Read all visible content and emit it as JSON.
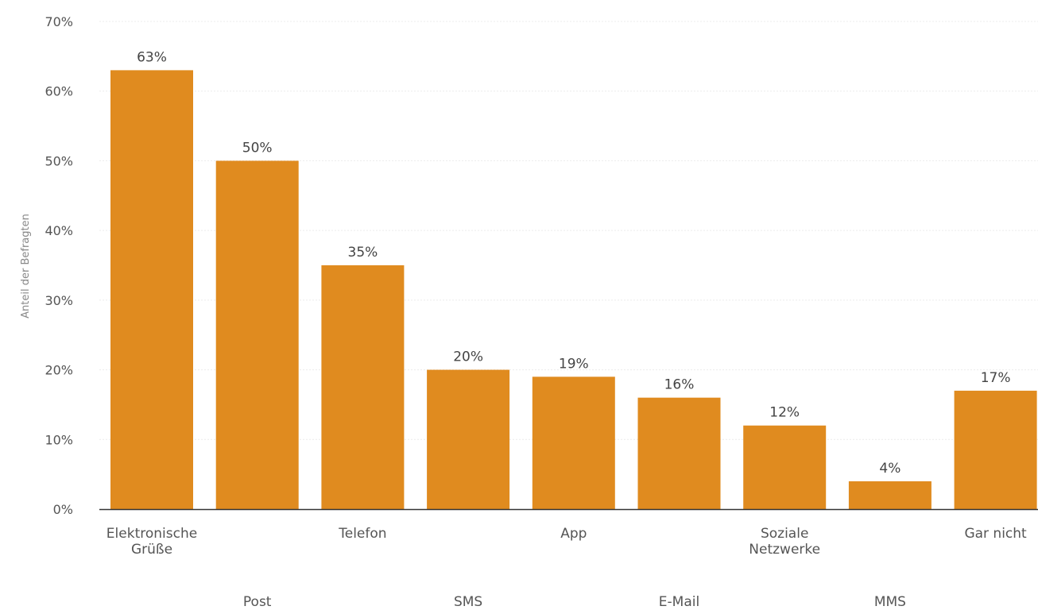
{
  "chart_data": {
    "type": "bar",
    "ylabel": "Anteil der Befragten",
    "ylim": [
      0,
      70
    ],
    "yticks": [
      0,
      10,
      20,
      30,
      40,
      50,
      60,
      70
    ],
    "ytick_labels": [
      "0%",
      "10%",
      "20%",
      "30%",
      "40%",
      "50%",
      "60%",
      "70%"
    ],
    "grid": true,
    "categories": [
      [
        "Elektronische",
        "Grüße"
      ],
      [
        "Post"
      ],
      [
        "Telefon"
      ],
      [
        "SMS"
      ],
      [
        "App"
      ],
      [
        "E-Mail"
      ],
      [
        "Soziale",
        "Netzwerke"
      ],
      [
        "MMS"
      ],
      [
        "Gar nicht"
      ]
    ],
    "values": [
      63,
      50,
      35,
      20,
      19,
      16,
      12,
      4,
      17
    ],
    "value_labels": [
      "63%",
      "50%",
      "35%",
      "20%",
      "19%",
      "16%",
      "12%",
      "4%",
      "17%"
    ],
    "bar_color": "#e08b1f"
  }
}
